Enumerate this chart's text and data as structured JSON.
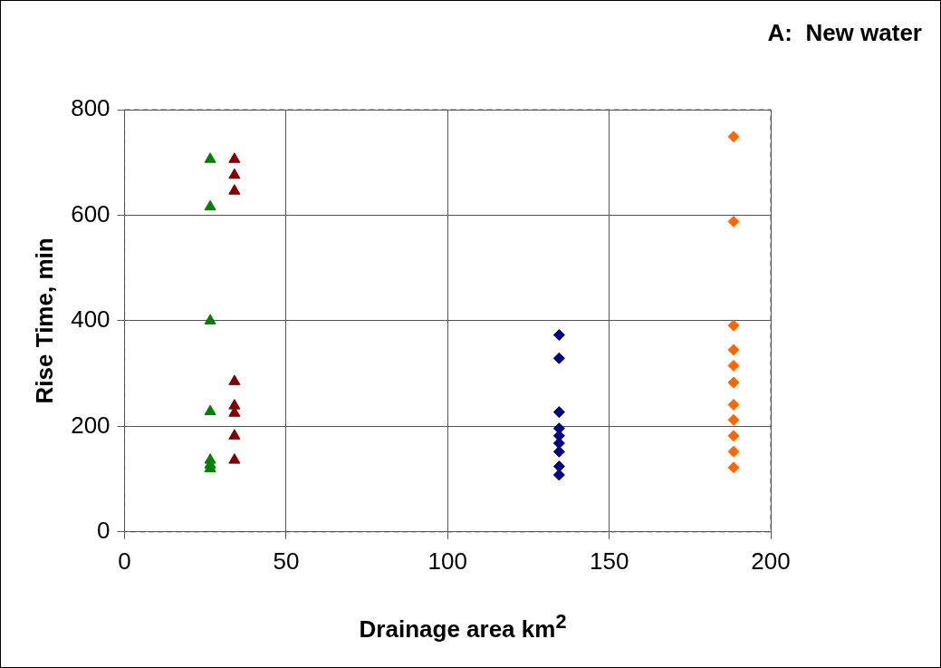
{
  "chart_data": {
    "type": "scatter",
    "title": "A:  New water",
    "xlabel": "Drainage area km$^{2}$",
    "ylabel": "Rise Time, min",
    "xlim": [
      0,
      200
    ],
    "xticks": [
      0,
      50,
      100,
      150,
      200
    ],
    "ylim": [
      0,
      800
    ],
    "yticks": [
      0,
      200,
      400,
      600,
      800
    ],
    "grid": true,
    "line_style": "dashed",
    "legend": false,
    "series": [
      {
        "color": "#008000",
        "marker": "triangle",
        "x": [
          26.5,
          26.5,
          26.5,
          26.5,
          26.5,
          26.5,
          26.5
        ],
        "values": [
          706,
          616,
          400,
          228,
          136,
          127,
          120
        ]
      },
      {
        "color": "#800000",
        "marker": "triangle",
        "x": [
          34,
          34,
          34,
          34,
          34,
          34,
          34,
          34
        ],
        "values": [
          706,
          676,
          646,
          285,
          239,
          225,
          182,
          136
        ]
      },
      {
        "color": "#000080",
        "marker": "diamond",
        "x": [
          134.5,
          134.5,
          134.5,
          134.5,
          134.5,
          134.5,
          134.5,
          134.5,
          134.5
        ],
        "values": [
          373,
          329,
          227,
          196,
          182,
          168,
          152,
          124,
          108
        ]
      },
      {
        "color": "#ff6600",
        "marker": "diamond",
        "x": [
          188.5,
          188.5,
          188.5,
          188.5,
          188.5,
          188.5,
          188.5,
          188.5,
          188.5,
          188.5,
          188.5
        ],
        "values": [
          749,
          588,
          391,
          345,
          315,
          283,
          241,
          212,
          182,
          152,
          122
        ]
      }
    ]
  }
}
